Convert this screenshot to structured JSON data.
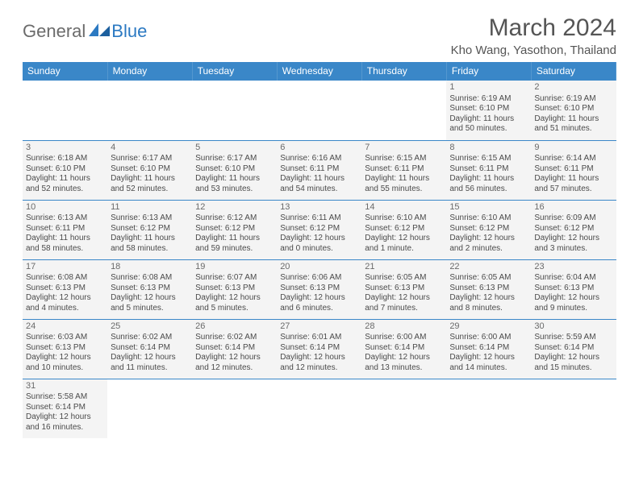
{
  "logo": {
    "text1": "General",
    "text2": "Blue"
  },
  "header": {
    "month_title": "March 2024",
    "location": "Kho Wang, Yasothon, Thailand"
  },
  "day_headers": [
    "Sunday",
    "Monday",
    "Tuesday",
    "Wednesday",
    "Thursday",
    "Friday",
    "Saturday"
  ],
  "colors": {
    "header_bg": "#3a87c8",
    "header_text": "#ffffff",
    "cell_bg": "#f4f4f4",
    "cell_border": "#3a87c8",
    "text": "#4a4a4a",
    "logo_gray": "#6b6b6b",
    "logo_blue": "#2b79c2"
  },
  "weeks": [
    [
      null,
      null,
      null,
      null,
      null,
      {
        "day": "1",
        "sunrise": "Sunrise: 6:19 AM",
        "sunset": "Sunset: 6:10 PM",
        "daylight1": "Daylight: 11 hours",
        "daylight2": "and 50 minutes."
      },
      {
        "day": "2",
        "sunrise": "Sunrise: 6:19 AM",
        "sunset": "Sunset: 6:10 PM",
        "daylight1": "Daylight: 11 hours",
        "daylight2": "and 51 minutes."
      }
    ],
    [
      {
        "day": "3",
        "sunrise": "Sunrise: 6:18 AM",
        "sunset": "Sunset: 6:10 PM",
        "daylight1": "Daylight: 11 hours",
        "daylight2": "and 52 minutes."
      },
      {
        "day": "4",
        "sunrise": "Sunrise: 6:17 AM",
        "sunset": "Sunset: 6:10 PM",
        "daylight1": "Daylight: 11 hours",
        "daylight2": "and 52 minutes."
      },
      {
        "day": "5",
        "sunrise": "Sunrise: 6:17 AM",
        "sunset": "Sunset: 6:10 PM",
        "daylight1": "Daylight: 11 hours",
        "daylight2": "and 53 minutes."
      },
      {
        "day": "6",
        "sunrise": "Sunrise: 6:16 AM",
        "sunset": "Sunset: 6:11 PM",
        "daylight1": "Daylight: 11 hours",
        "daylight2": "and 54 minutes."
      },
      {
        "day": "7",
        "sunrise": "Sunrise: 6:15 AM",
        "sunset": "Sunset: 6:11 PM",
        "daylight1": "Daylight: 11 hours",
        "daylight2": "and 55 minutes."
      },
      {
        "day": "8",
        "sunrise": "Sunrise: 6:15 AM",
        "sunset": "Sunset: 6:11 PM",
        "daylight1": "Daylight: 11 hours",
        "daylight2": "and 56 minutes."
      },
      {
        "day": "9",
        "sunrise": "Sunrise: 6:14 AM",
        "sunset": "Sunset: 6:11 PM",
        "daylight1": "Daylight: 11 hours",
        "daylight2": "and 57 minutes."
      }
    ],
    [
      {
        "day": "10",
        "sunrise": "Sunrise: 6:13 AM",
        "sunset": "Sunset: 6:11 PM",
        "daylight1": "Daylight: 11 hours",
        "daylight2": "and 58 minutes."
      },
      {
        "day": "11",
        "sunrise": "Sunrise: 6:13 AM",
        "sunset": "Sunset: 6:12 PM",
        "daylight1": "Daylight: 11 hours",
        "daylight2": "and 58 minutes."
      },
      {
        "day": "12",
        "sunrise": "Sunrise: 6:12 AM",
        "sunset": "Sunset: 6:12 PM",
        "daylight1": "Daylight: 11 hours",
        "daylight2": "and 59 minutes."
      },
      {
        "day": "13",
        "sunrise": "Sunrise: 6:11 AM",
        "sunset": "Sunset: 6:12 PM",
        "daylight1": "Daylight: 12 hours",
        "daylight2": "and 0 minutes."
      },
      {
        "day": "14",
        "sunrise": "Sunrise: 6:10 AM",
        "sunset": "Sunset: 6:12 PM",
        "daylight1": "Daylight: 12 hours",
        "daylight2": "and 1 minute."
      },
      {
        "day": "15",
        "sunrise": "Sunrise: 6:10 AM",
        "sunset": "Sunset: 6:12 PM",
        "daylight1": "Daylight: 12 hours",
        "daylight2": "and 2 minutes."
      },
      {
        "day": "16",
        "sunrise": "Sunrise: 6:09 AM",
        "sunset": "Sunset: 6:12 PM",
        "daylight1": "Daylight: 12 hours",
        "daylight2": "and 3 minutes."
      }
    ],
    [
      {
        "day": "17",
        "sunrise": "Sunrise: 6:08 AM",
        "sunset": "Sunset: 6:13 PM",
        "daylight1": "Daylight: 12 hours",
        "daylight2": "and 4 minutes."
      },
      {
        "day": "18",
        "sunrise": "Sunrise: 6:08 AM",
        "sunset": "Sunset: 6:13 PM",
        "daylight1": "Daylight: 12 hours",
        "daylight2": "and 5 minutes."
      },
      {
        "day": "19",
        "sunrise": "Sunrise: 6:07 AM",
        "sunset": "Sunset: 6:13 PM",
        "daylight1": "Daylight: 12 hours",
        "daylight2": "and 5 minutes."
      },
      {
        "day": "20",
        "sunrise": "Sunrise: 6:06 AM",
        "sunset": "Sunset: 6:13 PM",
        "daylight1": "Daylight: 12 hours",
        "daylight2": "and 6 minutes."
      },
      {
        "day": "21",
        "sunrise": "Sunrise: 6:05 AM",
        "sunset": "Sunset: 6:13 PM",
        "daylight1": "Daylight: 12 hours",
        "daylight2": "and 7 minutes."
      },
      {
        "day": "22",
        "sunrise": "Sunrise: 6:05 AM",
        "sunset": "Sunset: 6:13 PM",
        "daylight1": "Daylight: 12 hours",
        "daylight2": "and 8 minutes."
      },
      {
        "day": "23",
        "sunrise": "Sunrise: 6:04 AM",
        "sunset": "Sunset: 6:13 PM",
        "daylight1": "Daylight: 12 hours",
        "daylight2": "and 9 minutes."
      }
    ],
    [
      {
        "day": "24",
        "sunrise": "Sunrise: 6:03 AM",
        "sunset": "Sunset: 6:13 PM",
        "daylight1": "Daylight: 12 hours",
        "daylight2": "and 10 minutes."
      },
      {
        "day": "25",
        "sunrise": "Sunrise: 6:02 AM",
        "sunset": "Sunset: 6:14 PM",
        "daylight1": "Daylight: 12 hours",
        "daylight2": "and 11 minutes."
      },
      {
        "day": "26",
        "sunrise": "Sunrise: 6:02 AM",
        "sunset": "Sunset: 6:14 PM",
        "daylight1": "Daylight: 12 hours",
        "daylight2": "and 12 minutes."
      },
      {
        "day": "27",
        "sunrise": "Sunrise: 6:01 AM",
        "sunset": "Sunset: 6:14 PM",
        "daylight1": "Daylight: 12 hours",
        "daylight2": "and 12 minutes."
      },
      {
        "day": "28",
        "sunrise": "Sunrise: 6:00 AM",
        "sunset": "Sunset: 6:14 PM",
        "daylight1": "Daylight: 12 hours",
        "daylight2": "and 13 minutes."
      },
      {
        "day": "29",
        "sunrise": "Sunrise: 6:00 AM",
        "sunset": "Sunset: 6:14 PM",
        "daylight1": "Daylight: 12 hours",
        "daylight2": "and 14 minutes."
      },
      {
        "day": "30",
        "sunrise": "Sunrise: 5:59 AM",
        "sunset": "Sunset: 6:14 PM",
        "daylight1": "Daylight: 12 hours",
        "daylight2": "and 15 minutes."
      }
    ],
    [
      {
        "day": "31",
        "sunrise": "Sunrise: 5:58 AM",
        "sunset": "Sunset: 6:14 PM",
        "daylight1": "Daylight: 12 hours",
        "daylight2": "and 16 minutes."
      },
      null,
      null,
      null,
      null,
      null,
      null
    ]
  ]
}
